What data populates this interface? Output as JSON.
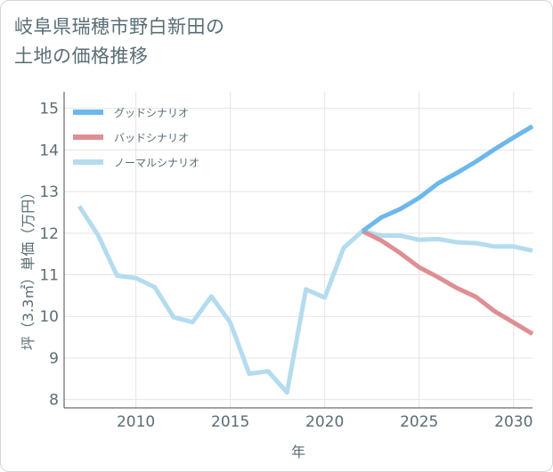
{
  "title": {
    "line1": "岐阜県瑞穂市野白新田の",
    "line2": "土地の価格推移"
  },
  "chart_data": {
    "type": "line",
    "title": "岐阜県瑞穂市野白新田の土地の価格推移",
    "xlabel": "年",
    "ylabel": "坪（3.3㎡）単価（万円）",
    "xlim": [
      2006.2,
      2031
    ],
    "ylim": [
      7.8,
      15.4
    ],
    "xticks": [
      2010,
      2015,
      2020,
      2025,
      2030
    ],
    "yticks": [
      8,
      9,
      10,
      11,
      12,
      13,
      14,
      15
    ],
    "grid": true,
    "legend_position": "top-left",
    "series": [
      {
        "name": "グッドシナリオ",
        "color": "#6cb8ec",
        "x": [
          2022,
          2023,
          2024,
          2025,
          2026,
          2027,
          2028,
          2029,
          2030,
          2031
        ],
        "y": [
          12.05,
          12.38,
          12.58,
          12.85,
          13.2,
          13.45,
          13.72,
          14.02,
          14.3,
          14.57
        ]
      },
      {
        "name": "バッドシナリオ",
        "color": "#de8f94",
        "x": [
          2022,
          2023,
          2024,
          2025,
          2026,
          2027,
          2028,
          2029,
          2030,
          2031
        ],
        "y": [
          12.05,
          11.82,
          11.52,
          11.18,
          10.94,
          10.68,
          10.47,
          10.12,
          9.85,
          9.58
        ]
      },
      {
        "name": "ノーマルシナリオ",
        "color": "#b4dcee",
        "x": [
          2007,
          2008,
          2009,
          2010,
          2011,
          2012,
          2013,
          2014,
          2015,
          2016,
          2017,
          2018,
          2019,
          2020,
          2021,
          2022,
          2023,
          2024,
          2025,
          2026,
          2027,
          2028,
          2029,
          2030,
          2031
        ],
        "y": [
          12.65,
          11.95,
          10.98,
          10.92,
          10.7,
          9.98,
          9.86,
          10.48,
          9.85,
          8.62,
          8.68,
          8.17,
          10.65,
          10.45,
          11.65,
          12.05,
          11.94,
          11.94,
          11.84,
          11.86,
          11.78,
          11.76,
          11.68,
          11.68,
          11.58
        ]
      }
    ]
  }
}
